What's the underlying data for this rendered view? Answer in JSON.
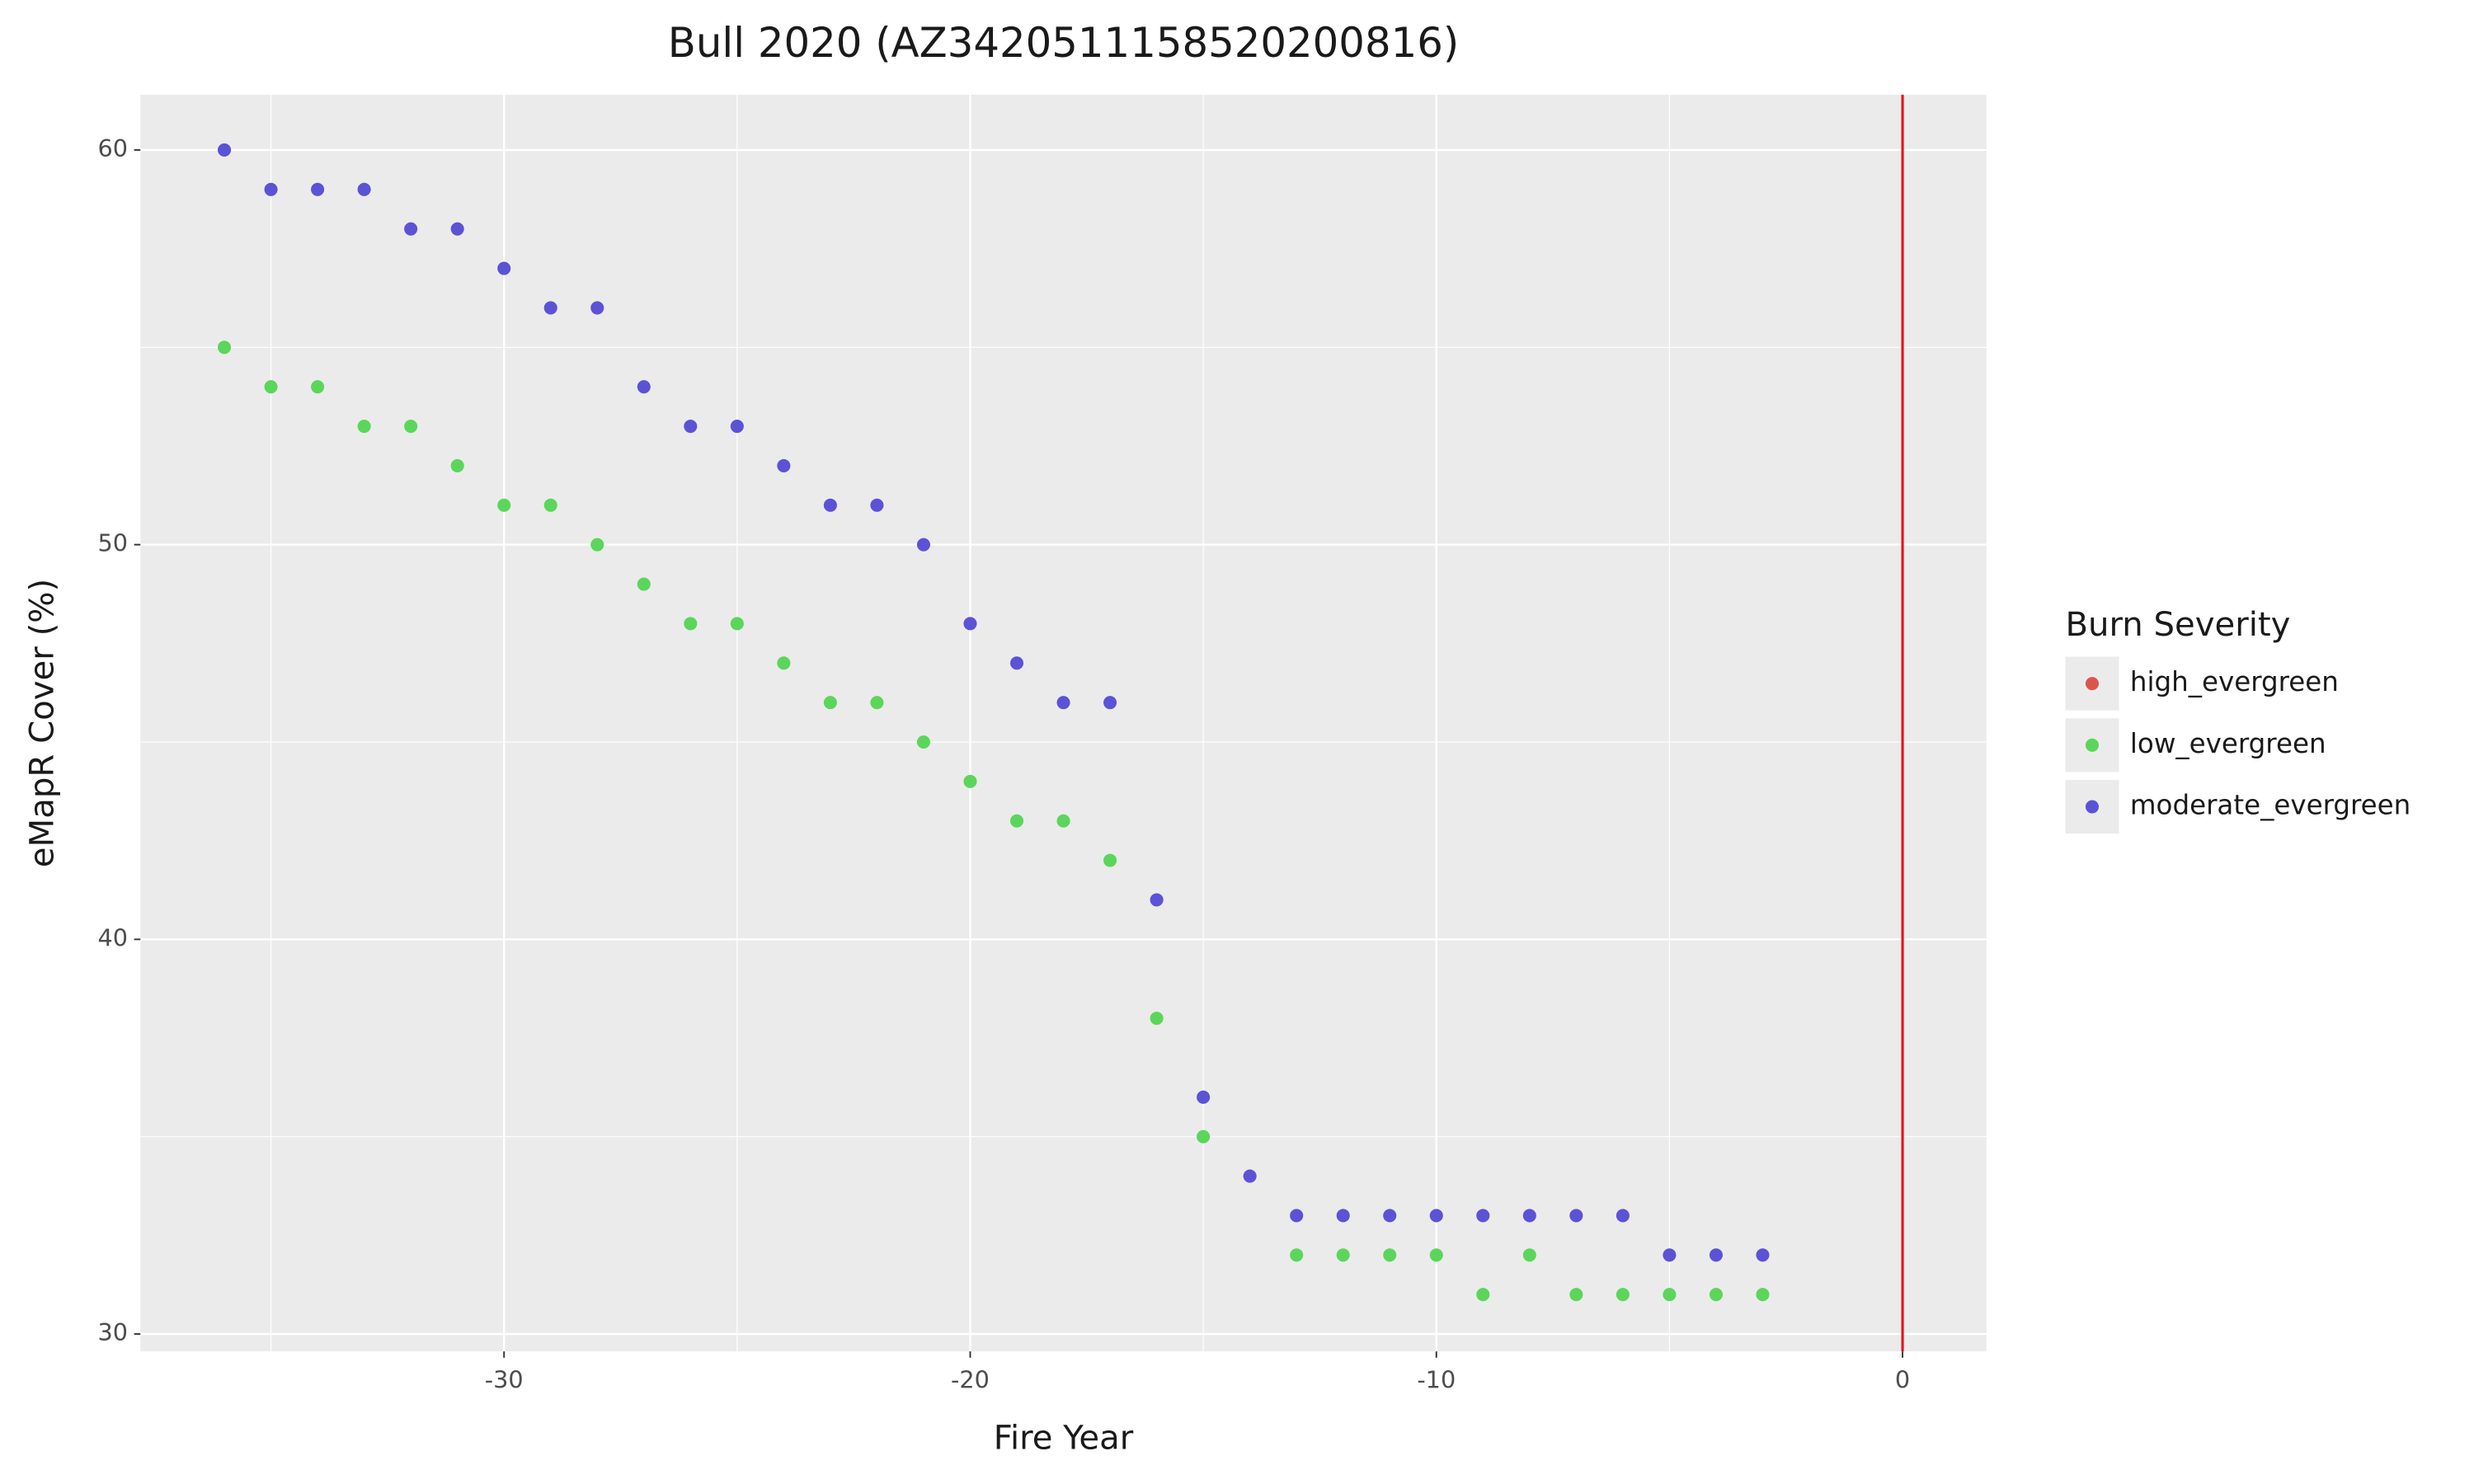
{
  "chart_data": {
    "type": "scatter",
    "title": "Bull 2020 (AZ3420511158520200816)",
    "x_label": "Fire Year",
    "y_label": "eMapR Cover (%)",
    "legend_title": "Burn Severity",
    "legend_position": "right",
    "grid": true,
    "xlim": [
      -37.8,
      1.8
    ],
    "ylim": [
      29.56,
      61.4
    ],
    "xticks": [
      -30,
      -20,
      -10,
      0
    ],
    "yticks": [
      30,
      40,
      50,
      60
    ],
    "vline": {
      "x": 0,
      "color": "#e3121a"
    },
    "series": [
      {
        "name": "high_evergreen",
        "color": "#d9564f",
        "x": [],
        "values": []
      },
      {
        "name": "low_evergreen",
        "color": "#5bd65b",
        "x": [
          -36,
          -35,
          -34,
          -33,
          -32,
          -31,
          -30,
          -29,
          -28,
          -27,
          -26,
          -25,
          -24,
          -23,
          -22,
          -21,
          -20,
          -19,
          -18,
          -17,
          -16,
          -15,
          -13,
          -12,
          -11,
          -10,
          -9,
          -8,
          -7,
          -6,
          -5,
          -4,
          -3
        ],
        "values": [
          55,
          54,
          54,
          53,
          53,
          52,
          51,
          51,
          50,
          49,
          48,
          48,
          47,
          46,
          46,
          45,
          44,
          43,
          43,
          42,
          38,
          35,
          32,
          32,
          32,
          32,
          31,
          32,
          31,
          31,
          31,
          31,
          31
        ]
      },
      {
        "name": "moderate_evergreen",
        "color": "#5b52d6",
        "x": [
          -36,
          -35,
          -34,
          -33,
          -32,
          -31,
          -30,
          -29,
          -28,
          -27,
          -26,
          -25,
          -24,
          -23,
          -22,
          -21,
          -20,
          -19,
          -18,
          -17,
          -16,
          -15,
          -14,
          -13,
          -12,
          -11,
          -10,
          -9,
          -8,
          -7,
          -6,
          -5,
          -4,
          -3
        ],
        "values": [
          60,
          59,
          59,
          59,
          58,
          58,
          57,
          56,
          56,
          54,
          53,
          53,
          52,
          51,
          51,
          50,
          48,
          47,
          46,
          46,
          41,
          36,
          34,
          33,
          33,
          33,
          33,
          33,
          33,
          33,
          33,
          32,
          32,
          32
        ]
      }
    ]
  }
}
